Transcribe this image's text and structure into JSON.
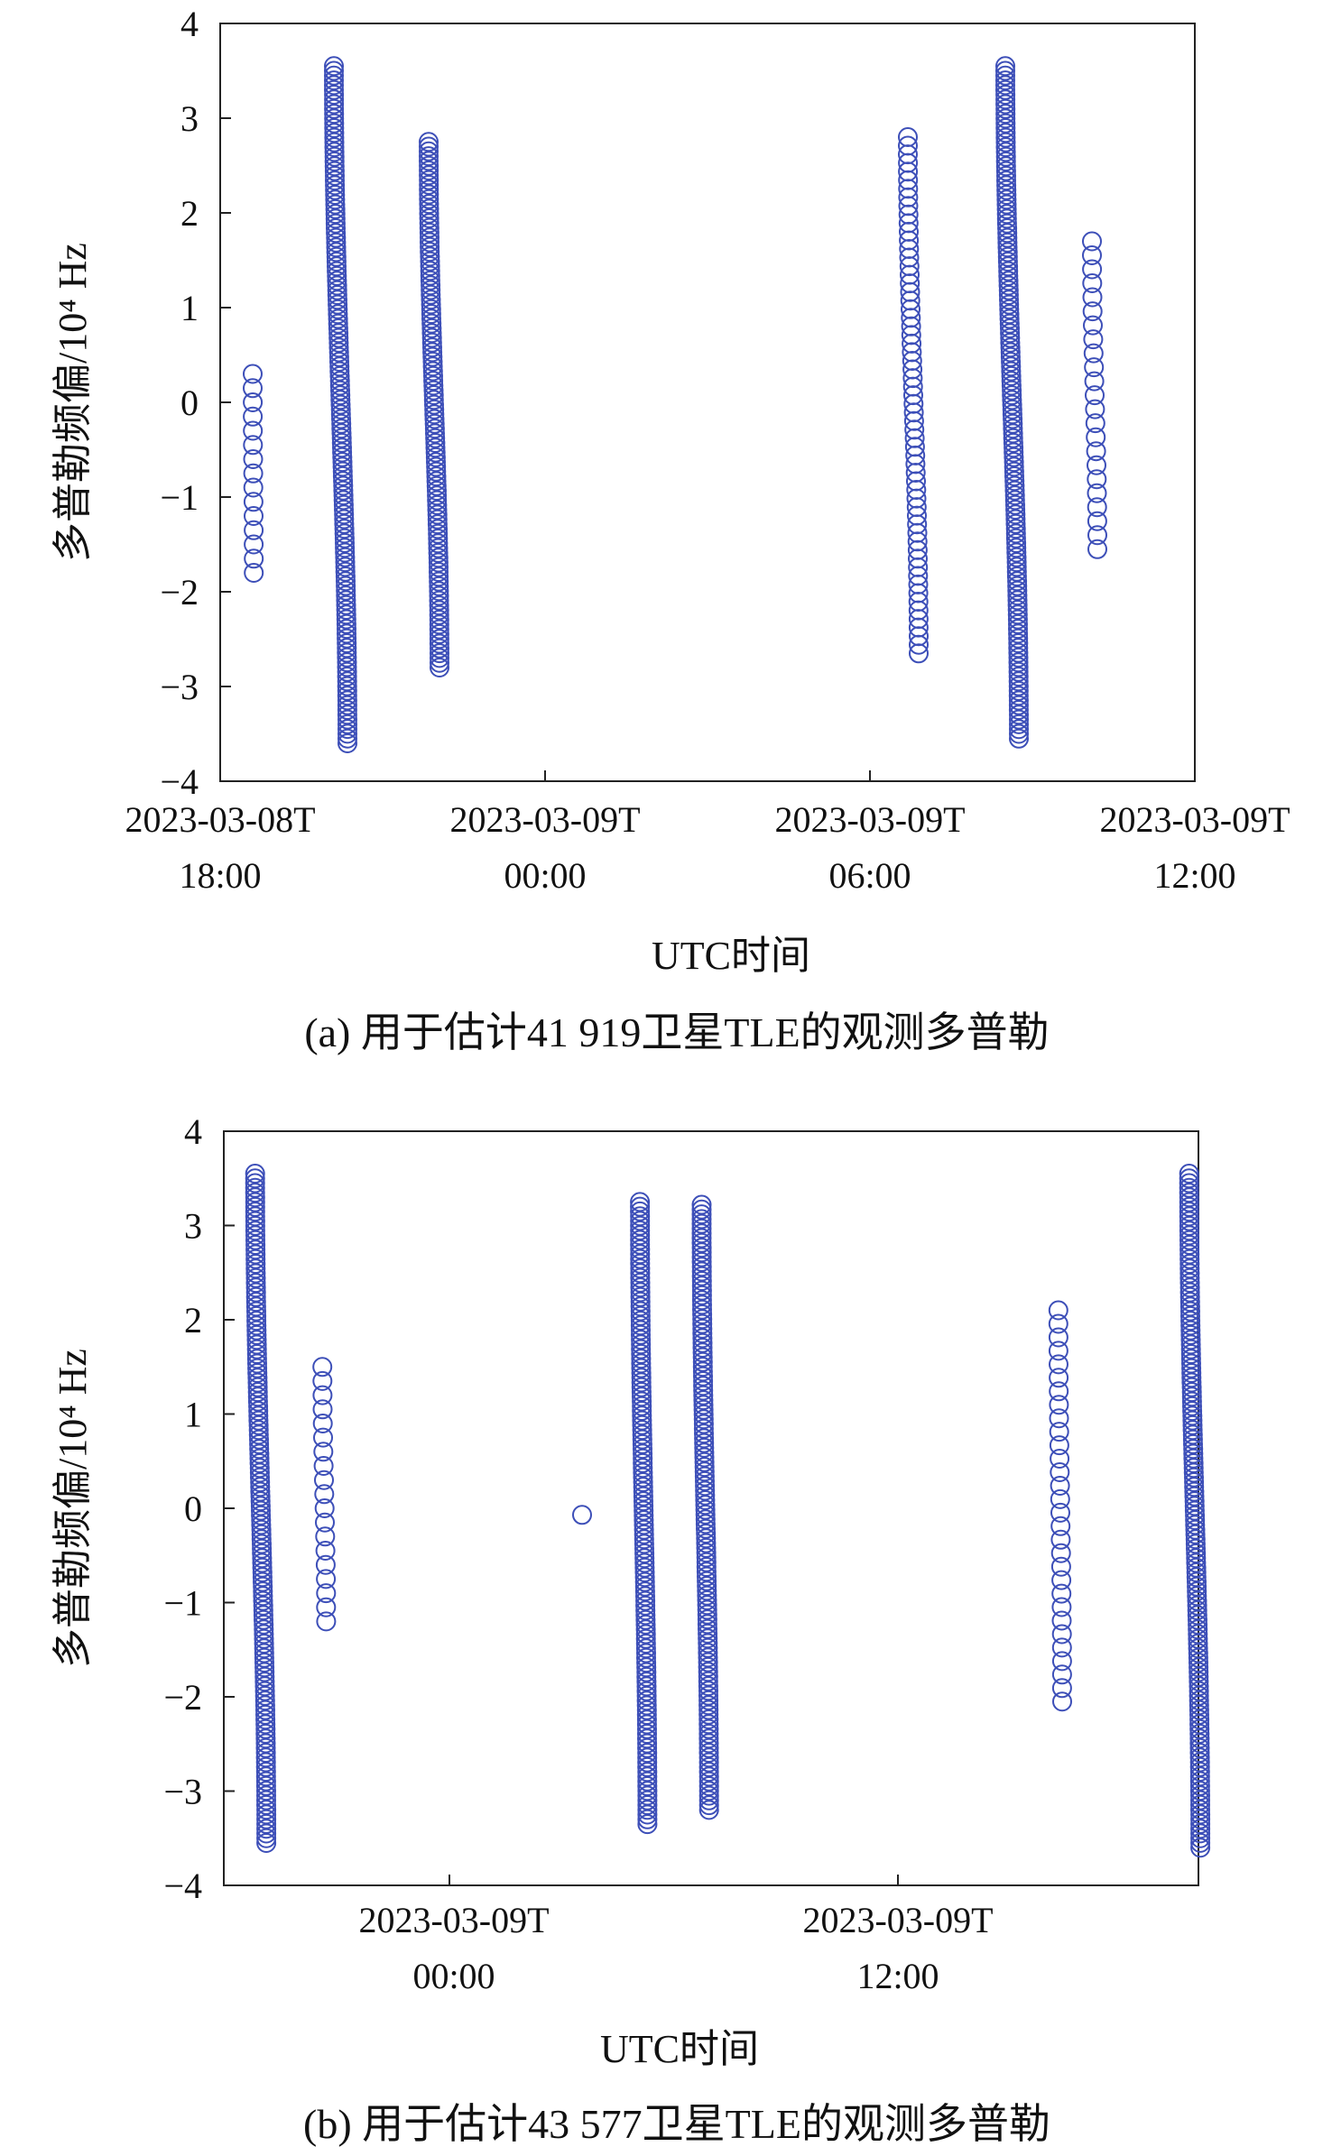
{
  "chart_data": [
    {
      "type": "scatter",
      "caption": "(a) 用于估计41 919卫星TLE的观测多普勒",
      "ylabel": "多普勒频偏/10⁴ Hz",
      "xlabel": "UTC时间",
      "ylim": [
        -4,
        4
      ],
      "xlim_hours": [
        18,
        30
      ],
      "yticks": [
        "4",
        "3",
        "2",
        "1",
        "0",
        "−1",
        "−2",
        "−3",
        "−4"
      ],
      "xticks": [
        {
          "line1": "2023-03-08T",
          "line2": "18:00",
          "hour": 18
        },
        {
          "line1": "2023-03-09T",
          "line2": "00:00",
          "hour": 24
        },
        {
          "line1": "2023-03-09T",
          "line2": "06:00",
          "hour": 30
        },
        {
          "line1": "2023-03-09T",
          "line2": "12:00",
          "hour": 36
        }
      ],
      "marker_color": "#3d4fb8",
      "passes": [
        {
          "t0": 18.6,
          "t1": 18.62,
          "y0": 0.3,
          "y1": -1.8,
          "density": "sparse"
        },
        {
          "t0": 20.1,
          "t1": 20.35,
          "y0": 3.55,
          "y1": -3.6,
          "density": "dense"
        },
        {
          "t0": 21.85,
          "t1": 22.05,
          "y0": 2.75,
          "y1": -2.8,
          "density": "dense"
        },
        {
          "t0": 30.7,
          "t1": 30.9,
          "y0": 2.8,
          "y1": -2.65,
          "density": "medium"
        },
        {
          "t0": 32.5,
          "t1": 32.75,
          "y0": 3.55,
          "y1": -3.55,
          "density": "dense"
        },
        {
          "t0": 34.1,
          "t1": 34.2,
          "y0": 1.7,
          "y1": -1.55,
          "density": "sparse"
        }
      ]
    },
    {
      "type": "scatter",
      "caption": "(b) 用于估计43 577卫星TLE的观测多普勒",
      "ylabel": "多普勒频偏/10⁴ Hz",
      "xlabel": "UTC时间",
      "ylim": [
        -4,
        4
      ],
      "xlim_hours": [
        18.1,
        45.8
      ],
      "yticks": [
        "4",
        "3",
        "2",
        "1",
        "0",
        "−1",
        "−2",
        "−3",
        "−4"
      ],
      "xticks": [
        {
          "line1": "2023-03-09T",
          "line2": "00:00",
          "hour": 24
        },
        {
          "line1": "2023-03-09T",
          "line2": "12:00",
          "hour": 36
        }
      ],
      "marker_color": "#3d4fb8",
      "passes": [
        {
          "t0": 18.8,
          "t1": 19.1,
          "y0": 3.55,
          "y1": -3.55,
          "density": "dense"
        },
        {
          "t0": 20.6,
          "t1": 20.7,
          "y0": 1.5,
          "y1": -1.2,
          "density": "sparse"
        },
        {
          "t0": 27.55,
          "t1": 27.55,
          "y0": -0.07,
          "y1": -0.07,
          "density": "single"
        },
        {
          "t0": 29.1,
          "t1": 29.3,
          "y0": 3.25,
          "y1": -3.35,
          "density": "dense"
        },
        {
          "t0": 30.75,
          "t1": 30.95,
          "y0": 3.22,
          "y1": -3.2,
          "density": "dense"
        },
        {
          "t0": 40.3,
          "t1": 40.4,
          "y0": 2.1,
          "y1": -2.05,
          "density": "sparse"
        },
        {
          "t0": 43.8,
          "t1": 44.1,
          "y0": 3.55,
          "y1": -3.6,
          "density": "dense"
        }
      ]
    }
  ]
}
